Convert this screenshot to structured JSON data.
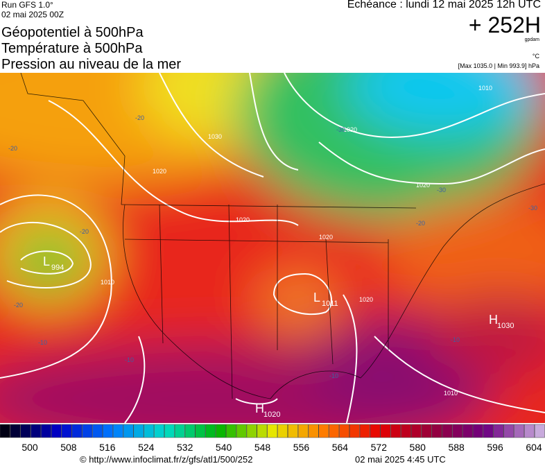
{
  "header": {
    "run": "Run GFS 1.0°",
    "run_date": "02 mai 2025 00Z",
    "titles": [
      "Géopotentiel à 500hPa",
      "Température à 500hPa",
      "Pression au niveau de la mer"
    ],
    "echeance": "Echéance : lundi 12 mai 2025 12h UTC",
    "lead": "+ 252H",
    "unit_geo": "gpdam",
    "unit_temp": "°C",
    "pressure_range": "[Max 1035.0 | Min 993.9] hPa"
  },
  "map": {
    "centers": [
      {
        "letter": "L",
        "value": "994"
      },
      {
        "letter": "L",
        "value": "1011"
      },
      {
        "letter": "H",
        "value": "1030"
      },
      {
        "letter": "H",
        "value": "1020"
      }
    ],
    "isobar_labels": [
      "1010",
      "1020",
      "1030",
      "1020",
      "1020",
      "1010",
      "1020",
      "1020",
      "1010",
      "1020"
    ],
    "temp_labels": [
      "-20",
      "-20",
      "-20",
      "-20",
      "-30",
      "-30",
      "-30",
      "-20",
      "-10",
      "-10",
      "-10",
      "-10"
    ]
  },
  "colorbar": {
    "labels": [
      "500",
      "508",
      "516",
      "524",
      "532",
      "540",
      "548",
      "556",
      "564",
      "572",
      "580",
      "588",
      "596",
      "604"
    ]
  },
  "footer": {
    "source": "© http://www.infoclimat.fr/z/gfs/atl1/500/252",
    "date": "02 mai 2025  4:45 UTC"
  }
}
